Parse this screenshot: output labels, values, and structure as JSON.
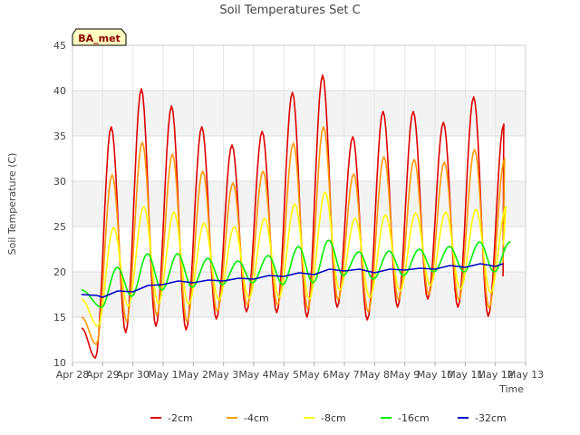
{
  "chart_data": {
    "type": "line",
    "title": "Soil Temperatures Set C",
    "xlabel": "Time",
    "ylabel": "Soil Temperature (C)",
    "station_label": "BA_met",
    "ylim": [
      10,
      45
    ],
    "yticks": [
      10,
      15,
      20,
      25,
      30,
      35,
      40,
      45
    ],
    "xlim": [
      0,
      15
    ],
    "xticks": [
      {
        "x": 0,
        "label": "Apr 28"
      },
      {
        "x": 1,
        "label": "Apr 29"
      },
      {
        "x": 2,
        "label": "Apr 30"
      },
      {
        "x": 3,
        "label": "May 1"
      },
      {
        "x": 4,
        "label": "May 2"
      },
      {
        "x": 5,
        "label": "May 3"
      },
      {
        "x": 6,
        "label": "May 4"
      },
      {
        "x": 7,
        "label": "May 5"
      },
      {
        "x": 8,
        "label": "May 6"
      },
      {
        "x": 9,
        "label": "May 7"
      },
      {
        "x": 10,
        "label": "May 8"
      },
      {
        "x": 11,
        "label": "May 9"
      },
      {
        "x": 12,
        "label": "May 10"
      },
      {
        "x": 13,
        "label": "May 11"
      },
      {
        "x": 14,
        "label": "May 12"
      },
      {
        "x": 15,
        "label": "May 13"
      }
    ],
    "grid": true,
    "legend_position": "bottom",
    "series": [
      {
        "name": "-2cm",
        "color": "#dd0000",
        "start": 0.3,
        "end": 14.25,
        "initial": 13.8,
        "final": 19.5,
        "min": [
          10.5,
          13.3,
          14.0,
          13.6,
          14.8,
          15.6,
          15.5,
          15.0,
          16.1,
          14.7,
          16.1,
          17.0,
          16.1,
          15.1
        ],
        "max": [
          36.0,
          40.2,
          38.3,
          36.0,
          34.0,
          35.5,
          39.8,
          41.7,
          34.9,
          37.7,
          37.7,
          36.5,
          39.3,
          36.3
        ]
      },
      {
        "name": "-4cm",
        "color": "#ff9900",
        "start": 0.3,
        "end": 14.25,
        "initial": 15.0,
        "final": 21.0,
        "min": [
          12.0,
          14.5,
          15.2,
          14.5,
          15.6,
          16.3,
          16.3,
          15.9,
          16.9,
          15.6,
          16.9,
          17.5,
          16.9,
          16.0
        ],
        "max": [
          30.7,
          34.3,
          33.0,
          31.1,
          29.8,
          31.1,
          34.2,
          36.0,
          30.8,
          32.7,
          32.4,
          32.1,
          33.5,
          32.5
        ]
      },
      {
        "name": "-8cm",
        "color": "#ffff00",
        "start": 0.3,
        "end": 14.25,
        "initial": 17.0,
        "final": 23.0,
        "min": [
          14.0,
          16.2,
          16.5,
          16.4,
          16.9,
          17.1,
          17.2,
          17.0,
          18.0,
          17.2,
          17.9,
          18.5,
          18.1,
          17.7
        ],
        "max": [
          24.9,
          27.2,
          26.6,
          25.4,
          25.0,
          25.9,
          27.5,
          28.8,
          25.9,
          26.3,
          26.5,
          26.6,
          26.9,
          27.2
        ]
      },
      {
        "name": "-16cm",
        "color": "#00ee00",
        "start": 0.3,
        "end": 14.25,
        "initial": 18.0,
        "final": 22.5,
        "min": [
          16.1,
          17.3,
          18.0,
          18.3,
          18.6,
          18.8,
          18.6,
          18.8,
          19.6,
          19.2,
          19.6,
          20.0,
          20.0,
          20.0
        ],
        "max": [
          20.5,
          22.0,
          22.0,
          21.5,
          21.2,
          21.8,
          22.8,
          23.5,
          22.2,
          22.3,
          22.5,
          22.8,
          23.3,
          23.3
        ]
      },
      {
        "name": "-32cm",
        "color": "#0000cc",
        "start": 0.3,
        "end": 14.25,
        "points": [
          [
            0.3,
            17.5
          ],
          [
            0.8,
            17.4
          ],
          [
            1.0,
            17.2
          ],
          [
            1.5,
            17.9
          ],
          [
            2.0,
            17.8
          ],
          [
            2.5,
            18.5
          ],
          [
            3.0,
            18.6
          ],
          [
            3.5,
            19.0
          ],
          [
            4.0,
            18.8
          ],
          [
            4.5,
            19.1
          ],
          [
            5.0,
            19.0
          ],
          [
            5.5,
            19.3
          ],
          [
            6.0,
            19.2
          ],
          [
            6.5,
            19.6
          ],
          [
            7.0,
            19.5
          ],
          [
            7.5,
            19.9
          ],
          [
            8.0,
            19.7
          ],
          [
            8.5,
            20.3
          ],
          [
            9.0,
            20.1
          ],
          [
            9.5,
            20.3
          ],
          [
            10.0,
            19.9
          ],
          [
            10.5,
            20.3
          ],
          [
            11.0,
            20.2
          ],
          [
            11.5,
            20.4
          ],
          [
            12.0,
            20.3
          ],
          [
            12.5,
            20.7
          ],
          [
            13.0,
            20.5
          ],
          [
            13.5,
            20.9
          ],
          [
            14.0,
            20.6
          ],
          [
            14.25,
            20.9
          ]
        ]
      }
    ]
  }
}
